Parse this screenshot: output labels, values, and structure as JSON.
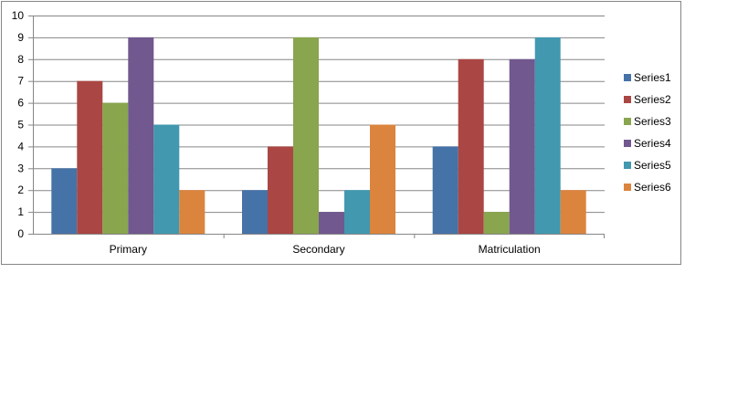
{
  "chart_data": {
    "type": "bar",
    "categories": [
      "Primary",
      "Secondary",
      "Matriculation"
    ],
    "series": [
      {
        "name": "Series1",
        "values": [
          3,
          2,
          4
        ],
        "color": "#4572A7"
      },
      {
        "name": "Series2",
        "values": [
          7,
          4,
          8
        ],
        "color": "#AA4643"
      },
      {
        "name": "Series3",
        "values": [
          6,
          9,
          1
        ],
        "color": "#89A54E"
      },
      {
        "name": "Series4",
        "values": [
          9,
          1,
          8
        ],
        "color": "#71588F"
      },
      {
        "name": "Series5",
        "values": [
          5,
          2,
          9
        ],
        "color": "#4198AF"
      },
      {
        "name": "Series6",
        "values": [
          2,
          5,
          2
        ],
        "color": "#DB843D"
      }
    ],
    "y_ticks": [
      "0",
      "1",
      "2",
      "3",
      "4",
      "5",
      "6",
      "7",
      "8",
      "9",
      "10"
    ],
    "ylim": [
      0,
      10
    ],
    "grid": true,
    "legend_position": "right"
  }
}
